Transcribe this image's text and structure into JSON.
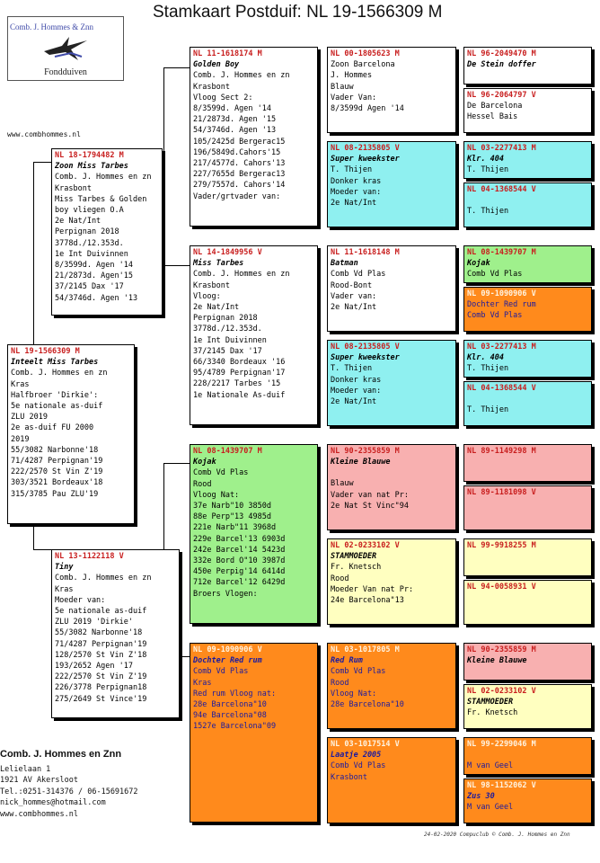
{
  "title": "Stamkaart Postduif: NL  19-1566309 M",
  "logo": {
    "top": "Comb. J. Hommes & Znn",
    "bottom": "Fondduiven"
  },
  "website": "www.combhommes.nl",
  "cards": {
    "subject": {
      "ring": "NL  19-1566309 M",
      "name": "Inteelt Miss Tarbes",
      "lines": [
        "Comb. J. Hommes en zn",
        "Kras",
        "Halfbroer 'Dirkie':",
        "5e nationale as-duif",
        "ZLU 2019",
        "2e as-duif FU 2000",
        "2019",
        "55/3082 Narbonne'18",
        "71/4287 Perpignan'19",
        "222/2570 St Vin Z'19",
        "303/3521 Bordeaux'18",
        "315/3785 Pau ZLU'19"
      ]
    },
    "father": {
      "ring": "NL  18-1794482 M",
      "name": "Zoon Miss Tarbes",
      "lines": [
        "Comb. J. Hommes en zn",
        "Krasbont",
        "Miss Tarbes & Golden",
        "boy vliegen O.A",
        "2e Nat/Int",
        "Perpignan 2018",
        "3778d./12.353d.",
        "1e Int Duivinnen",
        "8/3599d. Agen '14",
        "21/2873d. Agen'15",
        "37/2145 Dax      '17",
        "54/3746d. Agen '13"
      ]
    },
    "mother": {
      "ring": "NL  13-1122118 V",
      "name": "Tiny",
      "lines": [
        "Comb. J. Hommes en zn",
        "Kras",
        "Moeder van:",
        "5e nationale as-duif",
        "ZLU 2019 'Dirkie'",
        "55/3082 Narbonne'18",
        "71/4287 Perpignan'19",
        "128/2570 St Vin Z'18",
        "193/2652 Agen   '17",
        "222/2570 St Vin Z'19",
        "226/3778 Perpignan18",
        "275/2649 St Vince'19"
      ]
    },
    "ff": {
      "ring": "NL  11-1618174 M",
      "name": "Golden Boy",
      "lines": [
        "Comb. J. Hommes en zn",
        "Krasbont",
        "Vloog Sect 2:",
        "8/3599d. Agen '14",
        "21/2873d. Agen '15",
        "54/3746d. Agen '13",
        "105/2425d Bergerac15",
        "196/5849d.Cahors'15",
        "217/4577d. Cahors'13",
        "227/7655d Bergerac13",
        "279/7557d. Cahors'14",
        "Vader/grtvader van:"
      ]
    },
    "fm": {
      "ring": "NL  14-1849956 V",
      "name": "Miss Tarbes",
      "lines": [
        "Comb. J. Hommes en zn",
        "Krasbont",
        "Vloog:",
        "2e Nat/Int",
        "Perpignan 2018",
        "3778d./12.353d.",
        "1e Int Duivinnen",
        "37/2145 Dax      '17",
        "66/3340 Bordeaux '16",
        "95/4789 Perpignan'17",
        "228/2217 Tarbes  '15",
        "1e Nationale As-duif"
      ]
    },
    "mf": {
      "ring": "NL  08-1439707 M",
      "name": "Kojak",
      "lines": [
        "Comb Vd Plas",
        "Rood",
        "Vloog Nat:",
        "37e Narb\"10  3850d",
        "88e Perp\"13  4985d",
        "221e Narb\"11 3968d",
        "229e Barcel'13 6903d",
        "242e Barcel'14 5423d",
        "332e Bord O\"10 3987d",
        "450e Perpig'14 6414d",
        "712e Barcel'12 6429d",
        "Broers Vlogen:"
      ]
    },
    "mm": {
      "ring": "NL  09-1090906 V",
      "name": "Dochter Red rum",
      "lines": [
        "Comb Vd Plas",
        "Kras",
        "Red rum Vloog nat:",
        "28e Barcelona\"10",
        "94e Barcelona\"08",
        "1527e Barcelona\"09"
      ]
    },
    "fff": {
      "ring": "NL  00-1805623 M",
      "name": "",
      "lines": [
        "Zoon Barcelona",
        "J. Hommes",
        "Blauw",
        "Vader Van:",
        "8/3599d Agen '14"
      ]
    },
    "ffm": {
      "ring": "NL  08-2135805 V",
      "name": "Super kweekster",
      "lines": [
        "T. Thijen",
        "Donker kras",
        "Moeder van:",
        "2e Nat/Int"
      ]
    },
    "fmf": {
      "ring": "NL  11-1618148 M",
      "name": "Batman",
      "lines": [
        "Comb Vd Plas",
        "Rood-Bont",
        "Vader van:",
        "2e Nat/Int"
      ]
    },
    "fmm": {
      "ring": "NL  08-2135805 V",
      "name": "Super kweekster",
      "lines": [
        "T. Thijen",
        "Donker kras",
        "Moeder van:",
        "2e Nat/Int"
      ]
    },
    "mff": {
      "ring": "NL  90-2355859 M",
      "name": "Kleine Blauwe",
      "lines": [
        "",
        "Blauw",
        "Vader van nat Pr:",
        "2e Nat St Vinc\"94"
      ]
    },
    "mfm": {
      "ring": "NL  02-0233102 V",
      "name": "STAMMOEDER",
      "lines": [
        "Fr. Knetsch",
        "Rood",
        "Moeder Van nat Pr:",
        "24e Barcelona\"13"
      ]
    },
    "mmf": {
      "ring": "NL  03-1017805 M",
      "name": "Red Rum",
      "lines": [
        "Comb Vd Plas",
        "Rood",
        "Vloog Nat:",
        "28e Barcelona\"10"
      ]
    },
    "mmm": {
      "ring": "NL  03-1017514 V",
      "name": "Laatje 2005",
      "lines": [
        "Comb Vd Plas",
        "Krasbont"
      ]
    },
    "g1": {
      "ring": "NL  96-2049470 M",
      "name": "De Stein doffer",
      "lines": []
    },
    "g2": {
      "ring": "NL  96-2064797 V",
      "name": "",
      "lines": [
        "De Barcelona",
        "Hessel Bais"
      ]
    },
    "g3": {
      "ring": "NL  03-2277413 M",
      "name": "Klr. 404",
      "lines": [
        "T. Thijen"
      ]
    },
    "g4": {
      "ring": "NL  04-1368544 V",
      "name": "",
      "lines": [
        "",
        "T. Thijen"
      ]
    },
    "g5": {
      "ring": "NL  08-1439707 M",
      "name": "Kojak",
      "lines": [
        "Comb Vd Plas"
      ]
    },
    "g6": {
      "ring": "NL  09-1090906 V",
      "name": "",
      "lines": [
        "Dochter Red rum",
        "Comb Vd Plas"
      ]
    },
    "g7": {
      "ring": "NL  03-2277413 M",
      "name": "Klr. 404",
      "lines": [
        "T. Thijen"
      ]
    },
    "g8": {
      "ring": "NL  04-1368544 V",
      "name": "",
      "lines": [
        "",
        "T. Thijen"
      ]
    },
    "g9": {
      "ring": "NL  89-1149298 M",
      "name": "",
      "lines": []
    },
    "g10": {
      "ring": "NL  89-1181098 V",
      "name": "",
      "lines": []
    },
    "g11": {
      "ring": "NL  99-9918255 M",
      "name": "",
      "lines": []
    },
    "g12": {
      "ring": "NL  94-0058931 V",
      "name": "",
      "lines": []
    },
    "g13": {
      "ring": "NL  90-2355859 M",
      "name": "Kleine Blauwe",
      "lines": []
    },
    "g14": {
      "ring": "NL  02-0233102 V",
      "name": "STAMMOEDER",
      "lines": [
        "Fr. Knetsch"
      ]
    },
    "g15": {
      "ring": "NL  99-2299046 M",
      "name": "",
      "lines": [
        "",
        "M van Geel"
      ]
    },
    "g16": {
      "ring": "NL  98-1152062 V",
      "name": "Zus 30",
      "lines": [
        "M van Geel"
      ]
    }
  },
  "owner": {
    "name": "Comb. J. Hommes en Znn",
    "lines": [
      "Lelielaan 1",
      "1921 AV  Akersloot",
      "Tel.:0251-314376 / 06-15691672",
      "nick_hommes@hotmail.com",
      "www.combhommes.nl"
    ]
  },
  "footer": "24-02-2020    Compuclub © Comb. J. Hommes en Znn",
  "colors": {
    "green": "#9ff08c",
    "cyan": "#8ff0f0",
    "pink": "#f8b0b0",
    "yellow": "#ffffc0",
    "orange": "#ff8a1c",
    "ring_red": "#c81e1e"
  }
}
